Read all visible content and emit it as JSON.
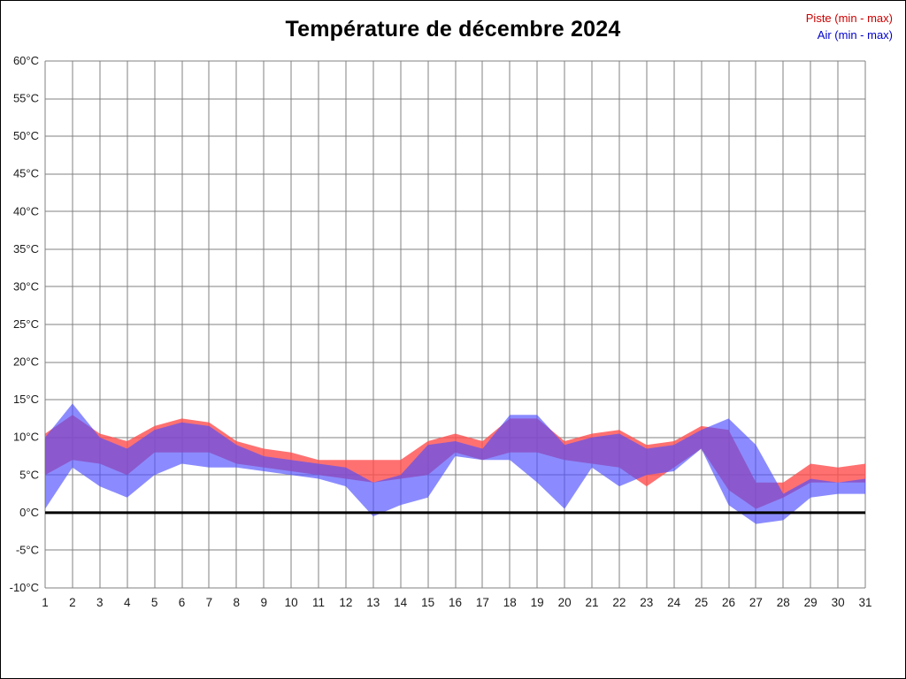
{
  "title": "Température de décembre 2024",
  "legend": [
    {
      "label": "Piste (min - max)",
      "color": "#cc0000"
    },
    {
      "label": "Air (min - max)",
      "color": "#0000cc"
    }
  ],
  "chart_data": {
    "type": "area",
    "title": "Température de décembre 2024",
    "xlabel": "",
    "ylabel": "",
    "y_unit": "°C",
    "ylim": [
      -10,
      60
    ],
    "ytick_step": 5,
    "yticks": [
      "60°C",
      "55°C",
      "50°C",
      "45°C",
      "40°C",
      "35°C",
      "30°C",
      "25°C",
      "20°C",
      "15°C",
      "10°C",
      "5°C",
      "0°C",
      "-5°C",
      "-10°C"
    ],
    "grid": true,
    "legend_position": "top-right",
    "zero_line": 0,
    "x": [
      1,
      2,
      3,
      4,
      5,
      6,
      7,
      8,
      9,
      10,
      11,
      12,
      13,
      14,
      15,
      16,
      17,
      18,
      19,
      20,
      21,
      22,
      23,
      24,
      25,
      26,
      27,
      28,
      29,
      30,
      31
    ],
    "series": [
      {
        "name": "Piste min",
        "values": [
          5,
          7,
          6.5,
          5,
          8,
          8,
          8,
          6.5,
          6,
          5.5,
          5,
          4.5,
          4,
          4.5,
          5,
          8,
          7,
          8,
          8,
          7,
          6.5,
          6,
          3.5,
          6,
          8.5,
          3,
          0.5,
          2,
          4,
          4,
          4
        ]
      },
      {
        "name": "Piste max",
        "values": [
          10.5,
          13,
          10.5,
          9.5,
          11.5,
          12.5,
          12,
          9.5,
          8.5,
          8,
          7,
          7,
          7,
          7,
          9.5,
          10.5,
          9.5,
          12.5,
          12.5,
          9.5,
          10.5,
          11,
          9,
          9.5,
          11.5,
          11,
          4,
          4,
          6.5,
          6,
          6.5
        ]
      },
      {
        "name": "Air min",
        "values": [
          0.5,
          6,
          3.5,
          2,
          5,
          6.5,
          6,
          6,
          5.5,
          5,
          4.5,
          3.5,
          -0.5,
          1,
          2,
          7.5,
          7,
          7,
          4,
          0.5,
          6,
          3.5,
          5,
          5.5,
          8.5,
          1,
          -1.5,
          -1,
          2,
          2.5,
          2.5
        ]
      },
      {
        "name": "Air max",
        "values": [
          10,
          14.5,
          10,
          8.5,
          11,
          12,
          11.5,
          9,
          7.5,
          7,
          6.5,
          6,
          4,
          5,
          9,
          9.5,
          8.5,
          13,
          13,
          9,
          10,
          10.5,
          8.5,
          9,
          11,
          12.5,
          9,
          2.5,
          4.5,
          4,
          4.5
        ]
      }
    ],
    "colors": {
      "piste_fill": "#ff4d4d",
      "piste_opacity": 0.8,
      "air_fill": "#4d4dff",
      "air_opacity": 0.65,
      "grid": "#808080",
      "zero_line": "#000000"
    }
  }
}
